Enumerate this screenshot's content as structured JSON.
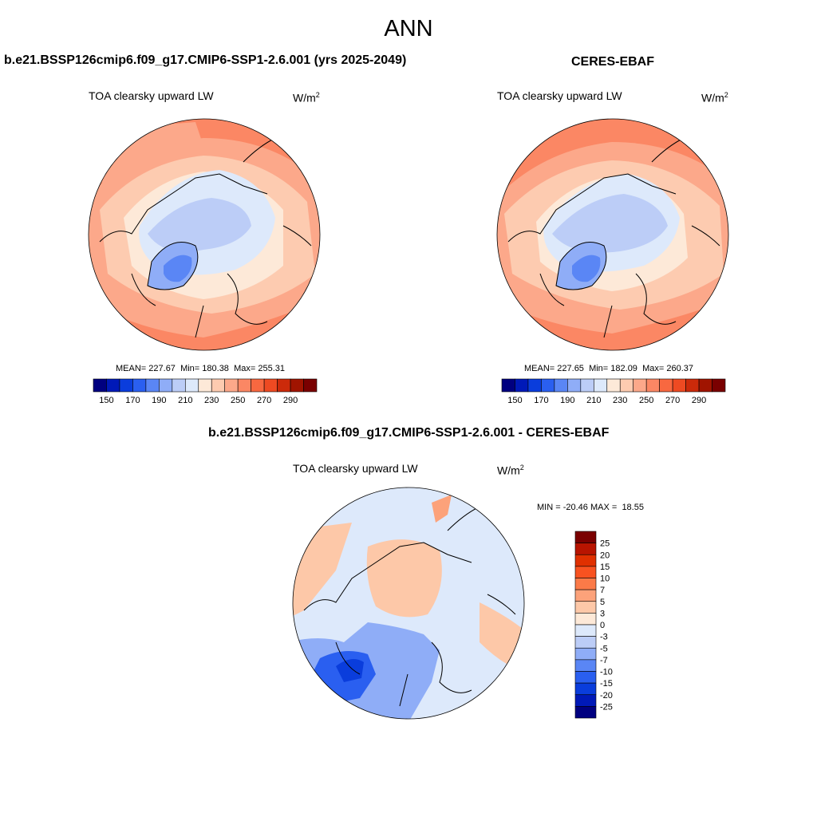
{
  "page": {
    "title": "ANN"
  },
  "panels": {
    "model": {
      "title": "b.e21.BSSP126cmip6.f09_g17.CMIP6-SSP1-2.6.001 (yrs 2025-2049)",
      "variable": "TOA clearsky upward LW",
      "units_base": "W/m",
      "units_exp": "2",
      "stats": {
        "mean": "227.67",
        "min": "180.38",
        "max": "255.31"
      }
    },
    "obs": {
      "title": "CERES-EBAF",
      "variable": "TOA clearsky upward LW",
      "units_base": "W/m",
      "units_exp": "2",
      "stats": {
        "mean": "227.65",
        "min": "182.09",
        "max": "260.37"
      }
    },
    "diff": {
      "title": "b.e21.BSSP126cmip6.f09_g17.CMIP6-SSP1-2.6.001 - CERES-EBAF",
      "variable": "TOA clearsky upward LW",
      "units_base": "W/m",
      "units_exp": "2",
      "stats": {
        "min": "-20.46",
        "max": "18.55"
      }
    }
  },
  "labels": {
    "mean": "MEAN=",
    "min": "Min=",
    "max": "Max=",
    "min_upper": "MIN =",
    "max_upper": "MAX ="
  },
  "colorbars": {
    "abs": {
      "colors": [
        "#000080",
        "#0019b8",
        "#0a3ddc",
        "#2a5ff0",
        "#5a86f5",
        "#8fadf7",
        "#bccdf7",
        "#dde9fb",
        "#fde9d8",
        "#fdcbb0",
        "#fca88a",
        "#fb8764",
        "#f86840",
        "#ee4a22",
        "#cc2a0a",
        "#a01400",
        "#7a0000"
      ],
      "ticks": [
        "150",
        "170",
        "190",
        "210",
        "230",
        "250",
        "270",
        "290"
      ]
    },
    "diff": {
      "colors": [
        "#7a0000",
        "#b81400",
        "#e03000",
        "#f85220",
        "#fb7a48",
        "#fca27a",
        "#fdc8a8",
        "#fde9d8",
        "#dde9fb",
        "#bccdf7",
        "#8fadf7",
        "#5a86f5",
        "#2a5ff0",
        "#0a3ddc",
        "#0019b8",
        "#000080"
      ],
      "ticks": [
        "25",
        "20",
        "15",
        "10",
        "7",
        "5",
        "3",
        "0",
        "-3",
        "-5",
        "-7",
        "-10",
        "-15",
        "-20",
        "-25"
      ]
    }
  },
  "map_colors": {
    "ring_outer": "#fb8764",
    "ring_mid": "#fca88a",
    "ring_inner": "#fdcbb0",
    "ocean_band": "#fde9d8",
    "arctic": "#dde9fb",
    "arctic_core": "#bccdf7",
    "greenland": "#8fadf7",
    "greenland_core": "#5a86f5",
    "diff_base": "#dde9fb",
    "diff_pos": "#fdc8a8",
    "diff_pos_strong": "#fca27a",
    "diff_neg": "#8fadf7",
    "diff_neg_strong": "#2a5ff0",
    "diff_neg_core": "#0a3ddc"
  }
}
